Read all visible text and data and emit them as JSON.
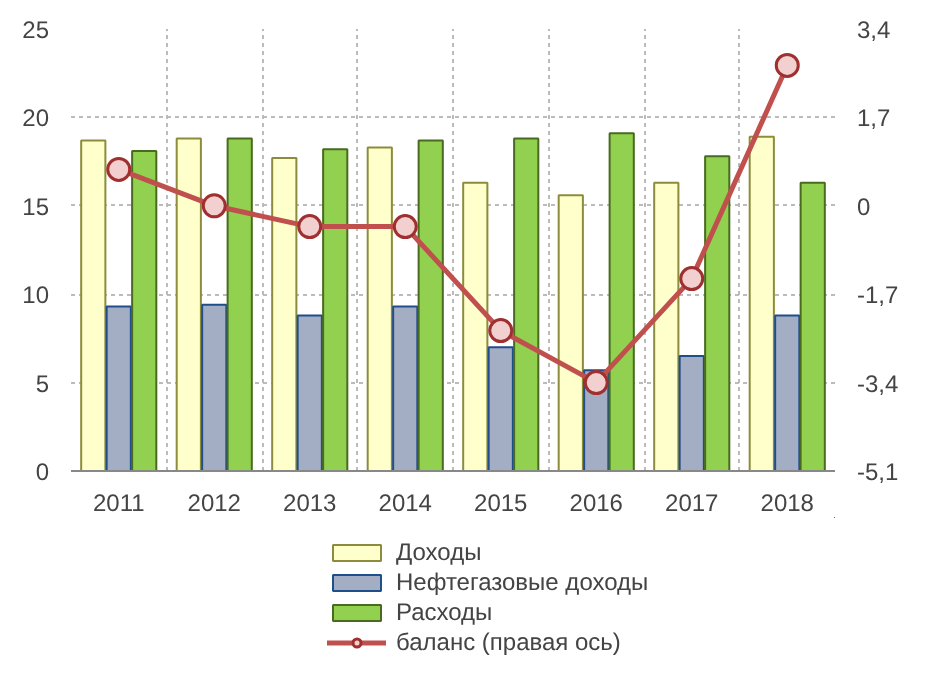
{
  "chart_data": {
    "type": "bar",
    "categories": [
      "2011",
      "2012",
      "2013",
      "2014",
      "2015",
      "2016",
      "2017",
      "2018"
    ],
    "series": [
      {
        "name": "Доходы",
        "color": "#ffffcc",
        "values": [
          18.7,
          18.8,
          17.7,
          18.3,
          16.3,
          15.6,
          16.3,
          18.9
        ]
      },
      {
        "name": "Нефтегазовые доходы",
        "color": "#a3adc4",
        "values": [
          9.3,
          9.4,
          8.8,
          9.3,
          7.0,
          5.7,
          6.5,
          8.8
        ]
      },
      {
        "name": "Расходы",
        "color": "#92d050",
        "values": [
          18.1,
          18.8,
          18.2,
          18.7,
          18.8,
          19.1,
          17.8,
          16.3
        ]
      },
      {
        "name": "баланс (правая ось)",
        "color": "#c0504d",
        "type": "line",
        "axis": "y2",
        "values": [
          0.7,
          0.0,
          -0.4,
          -0.4,
          -2.4,
          -3.4,
          -1.4,
          2.7
        ]
      }
    ],
    "ylim": [
      0,
      25
    ],
    "yticks": [
      0,
      5,
      10,
      15,
      20,
      25
    ],
    "y2lim": [
      -5.1,
      3.4
    ],
    "y2ticks": [
      {
        "value": -5.1,
        "label": "-5,1"
      },
      {
        "value": -3.4,
        "label": "-3,4"
      },
      {
        "value": -1.7,
        "label": "-1,7"
      },
      0,
      {
        "value": 1.7,
        "label": "1,7"
      },
      {
        "value": 3.4,
        "label": "3,4"
      }
    ],
    "grid": true,
    "legend": "bottom",
    "marker": "circle"
  }
}
